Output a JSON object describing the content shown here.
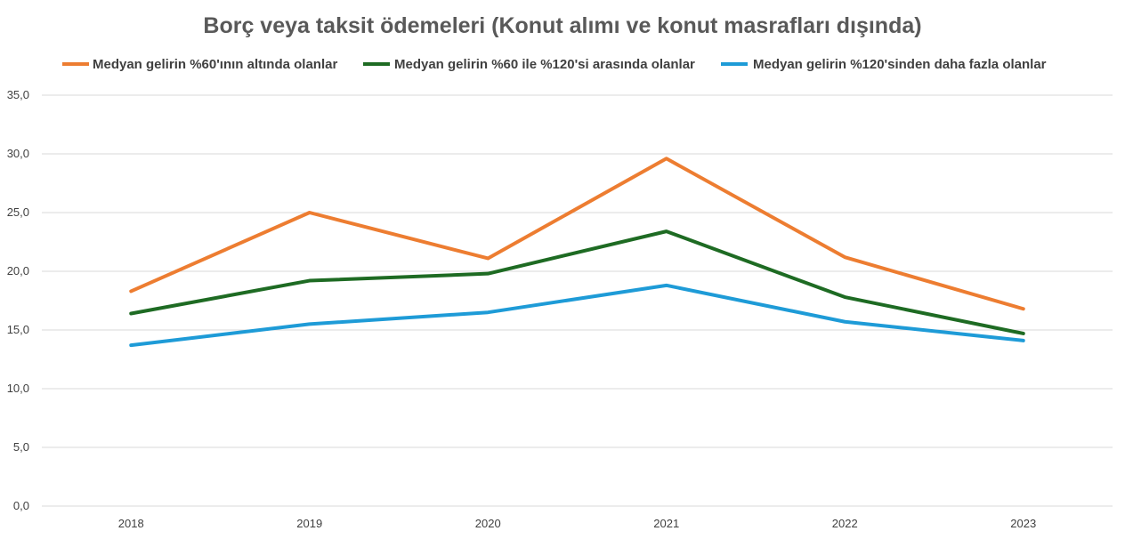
{
  "chart_data": {
    "type": "line",
    "title": "Borç veya taksit ödemeleri (Konut alımı ve konut masrafları dışında)",
    "categories": [
      "2018",
      "2019",
      "2020",
      "2021",
      "2022",
      "2023"
    ],
    "ylim": [
      0,
      35
    ],
    "yticks": [
      "0,0",
      "5,0",
      "10,0",
      "15,0",
      "20,0",
      "25,0",
      "30,0",
      "35,0"
    ],
    "grid": true,
    "legend_position": "top",
    "series": [
      {
        "name": "Medyan gelirin %60'ının altında olanlar",
        "color": "#ED7D31",
        "values": [
          18.3,
          25.0,
          21.1,
          29.6,
          21.2,
          16.8
        ]
      },
      {
        "name": "Medyan gelirin %60 ile %120'si arasında olanlar",
        "color": "#1E6B23",
        "values": [
          16.4,
          19.2,
          19.8,
          23.4,
          17.8,
          14.7
        ]
      },
      {
        "name": "Medyan gelirin  %120'sinden daha fazla olanlar",
        "color": "#1E9BD7",
        "values": [
          13.7,
          15.5,
          16.5,
          18.8,
          15.7,
          14.1
        ]
      }
    ]
  }
}
